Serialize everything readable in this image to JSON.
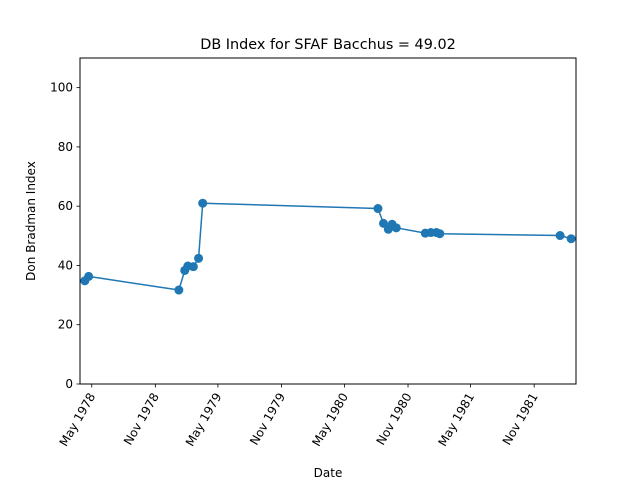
{
  "chart_data": {
    "type": "line",
    "title": "DB Index for SFAF Bacchus = 49.02",
    "xlabel": "Date",
    "ylabel": "Don Bradman Index",
    "ylim": [
      0,
      110
    ],
    "y_ticks": [
      0,
      20,
      40,
      60,
      80,
      100
    ],
    "x_ticks": [
      {
        "date": "1978-05-01",
        "label": "May 1978"
      },
      {
        "date": "1978-11-01",
        "label": "Nov 1978"
      },
      {
        "date": "1979-05-01",
        "label": "May 1979"
      },
      {
        "date": "1979-11-01",
        "label": "Nov 1979"
      },
      {
        "date": "1980-05-01",
        "label": "May 1980"
      },
      {
        "date": "1980-11-01",
        "label": "Nov 1980"
      },
      {
        "date": "1981-05-01",
        "label": "May 1981"
      },
      {
        "date": "1981-11-01",
        "label": "Nov 1981"
      }
    ],
    "xlim": [
      "1978-03-28",
      "1982-03-02"
    ],
    "grid": false,
    "series_color": "#1f77b4",
    "series": [
      {
        "x": [
          "1978-04-11",
          "1978-04-22",
          "1979-01-08",
          "1979-01-25",
          "1979-02-03",
          "1979-02-19",
          "1979-03-06",
          "1979-03-18",
          "1980-08-06",
          "1980-08-22",
          "1980-09-05",
          "1980-09-16",
          "1980-09-28",
          "1980-12-21",
          "1981-01-06",
          "1981-01-22",
          "1981-02-01",
          "1982-01-15",
          "1982-02-16"
        ],
        "y": [
          34.8,
          36.3,
          31.7,
          38.3,
          39.8,
          39.6,
          42.4,
          61.0,
          59.2,
          54.2,
          52.2,
          53.9,
          52.7,
          50.9,
          51.1,
          51.1,
          50.7,
          50.1,
          49.02
        ]
      }
    ]
  }
}
